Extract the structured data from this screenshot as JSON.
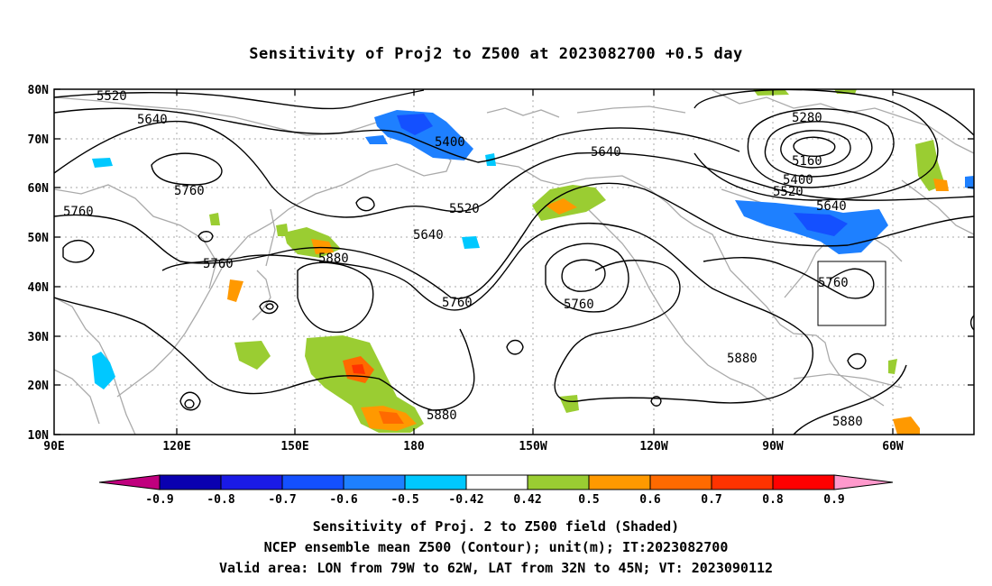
{
  "title": "Sensitivity of Proj2 to Z500 at 2023082700 +0.5 day",
  "lat_labels": [
    "80N",
    "70N",
    "60N",
    "50N",
    "40N",
    "30N",
    "20N",
    "10N"
  ],
  "lon_labels": [
    "90E",
    "120E",
    "150E",
    "180",
    "150W",
    "120W",
    "90W",
    "60W"
  ],
  "contour_labels": [
    "5520",
    "5640",
    "5760",
    "5760",
    "5400",
    "5520",
    "5640",
    "5760",
    "5640",
    "5880",
    "5760",
    "5760",
    "5880",
    "5280",
    "5160",
    "5400",
    "5520",
    "5640",
    "5760",
    "5880",
    "5880"
  ],
  "colorbar": {
    "labels": [
      "-0.9",
      "-0.8",
      "-0.7",
      "-0.6",
      "-0.5",
      "-0.42",
      "0.42",
      "0.5",
      "0.6",
      "0.7",
      "0.8",
      "0.9"
    ],
    "colors": [
      "#c0007e",
      "#0a00b0",
      "#1a1ae6",
      "#1450ff",
      "#1e80ff",
      "#00c8ff",
      "#ffffff",
      "#9acd32",
      "#ff9900",
      "#ff6a00",
      "#ff3300",
      "#ff0000",
      "#ff99cc"
    ]
  },
  "captions": [
    "Sensitivity of Proj. 2 to Z500 field (Shaded)",
    "NCEP ensemble mean Z500 (Contour); unit(m); IT:2023082700",
    "Valid area: LON from 79W to 62W, LAT from 32N to 45N; VT: 2023090112"
  ],
  "valid_box": {
    "lon_min": -79,
    "lon_max": -62,
    "lat_min": 32,
    "lat_max": 45
  }
}
